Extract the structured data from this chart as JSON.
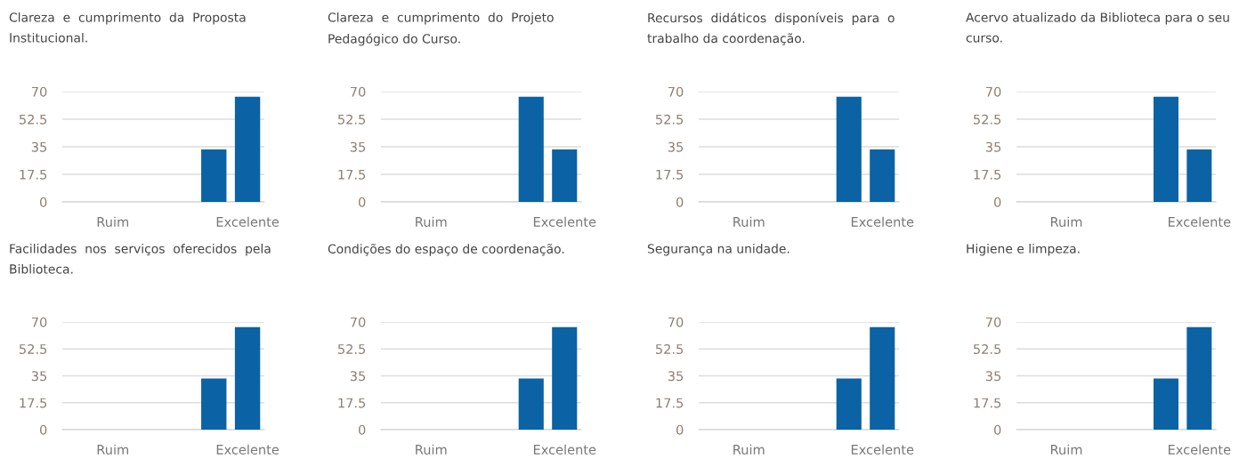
{
  "chart_data": [
    {
      "type": "bar",
      "title": "Clareza  e  cumprimento  da  Proposta\nInstitucional.",
      "categories": [
        null,
        "Ruim",
        null,
        null,
        null,
        "Excelente"
      ],
      "values": [
        0,
        0,
        0,
        0,
        33.3,
        66.7
      ],
      "color": "#0b62a4",
      "ylim": [
        0,
        70
      ],
      "yticks": [
        0,
        17.5,
        35,
        52.5,
        70
      ],
      "grid": "y"
    },
    {
      "type": "bar",
      "title": "Clareza  e  cumprimento  do  Projeto\nPedagógico do Curso.",
      "categories": [
        null,
        "Ruim",
        null,
        null,
        null,
        "Excelente"
      ],
      "values": [
        0,
        0,
        0,
        0,
        66.7,
        33.3
      ],
      "color": "#0b62a4",
      "ylim": [
        0,
        70
      ],
      "yticks": [
        0,
        17.5,
        35,
        52.5,
        70
      ],
      "grid": "y"
    },
    {
      "type": "bar",
      "title": "Recursos  didáticos  disponíveis  para  o\ntrabalho da coordenação.",
      "categories": [
        null,
        "Ruim",
        null,
        null,
        null,
        "Excelente"
      ],
      "values": [
        0,
        0,
        0,
        0,
        66.7,
        33.3
      ],
      "color": "#0b62a4",
      "ylim": [
        0,
        70
      ],
      "yticks": [
        0,
        17.5,
        35,
        52.5,
        70
      ],
      "grid": "y"
    },
    {
      "type": "bar",
      "title": "Acervo atualizado da Biblioteca para o seu\ncurso.",
      "categories": [
        null,
        "Ruim",
        null,
        null,
        null,
        "Excelente"
      ],
      "values": [
        0,
        0,
        0,
        0,
        66.7,
        33.3
      ],
      "color": "#0b62a4",
      "ylim": [
        0,
        70
      ],
      "yticks": [
        0,
        17.5,
        35,
        52.5,
        70
      ],
      "grid": "y"
    },
    {
      "type": "bar",
      "title": "Facilidades  nos  serviços  oferecidos  pela\nBiblioteca.",
      "categories": [
        null,
        "Ruim",
        null,
        null,
        null,
        "Excelente"
      ],
      "values": [
        0,
        0,
        0,
        0,
        33.3,
        66.7
      ],
      "color": "#0b62a4",
      "ylim": [
        0,
        70
      ],
      "yticks": [
        0,
        17.5,
        35,
        52.5,
        70
      ],
      "grid": "y"
    },
    {
      "type": "bar",
      "title": "Condições do espaço de coordenação.",
      "categories": [
        null,
        "Ruim",
        null,
        null,
        null,
        "Excelente"
      ],
      "values": [
        0,
        0,
        0,
        0,
        33.3,
        66.7
      ],
      "color": "#0b62a4",
      "ylim": [
        0,
        70
      ],
      "yticks": [
        0,
        17.5,
        35,
        52.5,
        70
      ],
      "grid": "y"
    },
    {
      "type": "bar",
      "title": "Segurança na unidade.",
      "categories": [
        null,
        "Ruim",
        null,
        null,
        null,
        "Excelente"
      ],
      "values": [
        0,
        0,
        0,
        0,
        33.3,
        66.7
      ],
      "color": "#0b62a4",
      "ylim": [
        0,
        70
      ],
      "yticks": [
        0,
        17.5,
        35,
        52.5,
        70
      ],
      "grid": "y"
    },
    {
      "type": "bar",
      "title": "Higiene e limpeza.",
      "categories": [
        null,
        "Ruim",
        null,
        null,
        null,
        "Excelente"
      ],
      "values": [
        0,
        0,
        0,
        0,
        33.3,
        66.7
      ],
      "color": "#0b62a4",
      "ylim": [
        0,
        70
      ],
      "yticks": [
        0,
        17.5,
        35,
        52.5,
        70
      ],
      "grid": "y"
    }
  ]
}
